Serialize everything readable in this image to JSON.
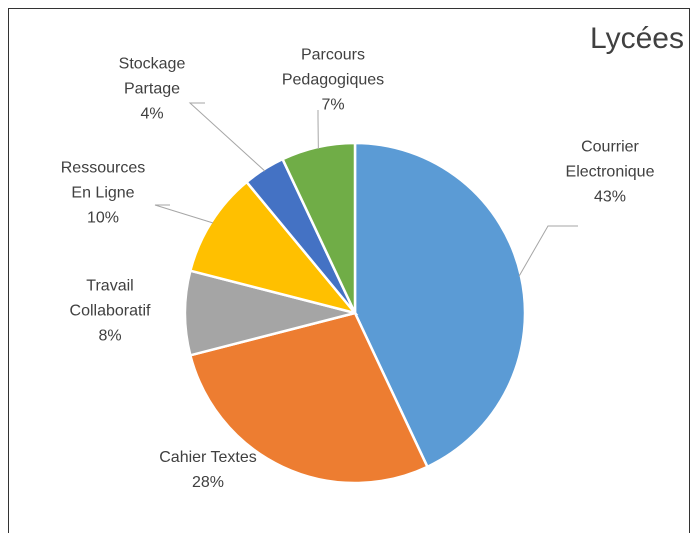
{
  "chart_data": {
    "type": "pie",
    "title": "Lycées",
    "categories": [
      "Courrier Electronique",
      "Cahier Textes",
      "Travail Collaboratif",
      "Ressources En Ligne",
      "Stockage Partage",
      "Parcours Pedagogiques"
    ],
    "values": [
      43,
      28,
      8,
      10,
      4,
      7
    ],
    "value_labels": [
      "43%",
      "28%",
      "8%",
      "10%",
      "4%",
      "7%"
    ],
    "colors": [
      "#5b9bd5",
      "#ed7d31",
      "#a5a5a5",
      "#ffc000",
      "#4472c4",
      "#70ad47"
    ]
  }
}
